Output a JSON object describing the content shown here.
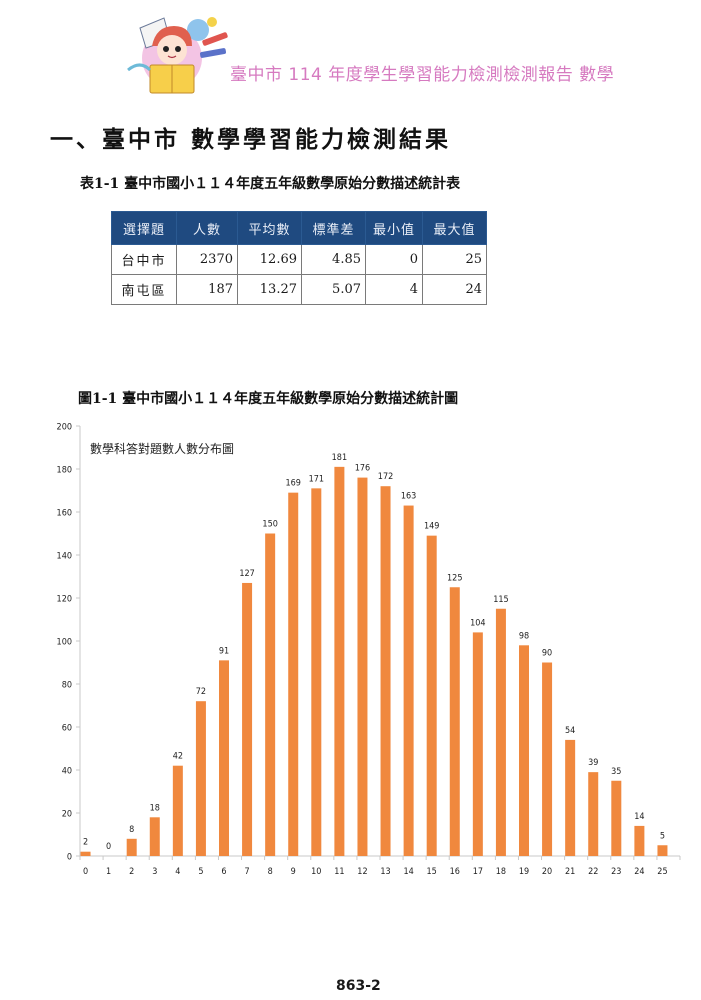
{
  "header": {
    "title": "臺中市 114 年度學生學習能力檢測檢測報告  數學",
    "mascot_icon": "child-reading-book-icon"
  },
  "section": {
    "title": "一、臺中市  數學學習能力檢測結果"
  },
  "table": {
    "caption": "表1-1  臺中市國小１１４年度五年級數學原始分數描述統計表",
    "headers": [
      "選擇題",
      "人數",
      "平均數",
      "標準差",
      "最小值",
      "最大值"
    ],
    "rows": [
      [
        "台中市",
        "2370",
        "12.69",
        "4.85",
        "0",
        "25"
      ],
      [
        "南屯區",
        "187",
        "13.27",
        "5.07",
        "4",
        "24"
      ]
    ]
  },
  "figure": {
    "caption": "圖1-1  臺中市國小１１４年度五年級數學原始分數描述統計圖"
  },
  "chart_data": {
    "type": "bar",
    "title": "數學科答對題數人數分布圖",
    "xlabel": "",
    "ylabel": "",
    "categories": [
      "0",
      "1",
      "2",
      "3",
      "4",
      "5",
      "6",
      "7",
      "8",
      "9",
      "10",
      "11",
      "12",
      "13",
      "14",
      "15",
      "16",
      "17",
      "18",
      "19",
      "20",
      "21",
      "22",
      "23",
      "24",
      "25"
    ],
    "values": [
      2,
      0,
      8,
      18,
      42,
      72,
      91,
      127,
      150,
      169,
      171,
      181,
      176,
      172,
      163,
      149,
      125,
      104,
      115,
      98,
      90,
      54,
      39,
      35,
      14,
      5
    ],
    "ylim": [
      0,
      200
    ],
    "yticks": [
      0,
      20,
      40,
      60,
      80,
      100,
      120,
      140,
      160,
      180,
      200
    ],
    "grid": false,
    "legend": "none",
    "data_labels": true,
    "bar_color": "#f0883e"
  },
  "footer": {
    "page_number": "863-2"
  }
}
